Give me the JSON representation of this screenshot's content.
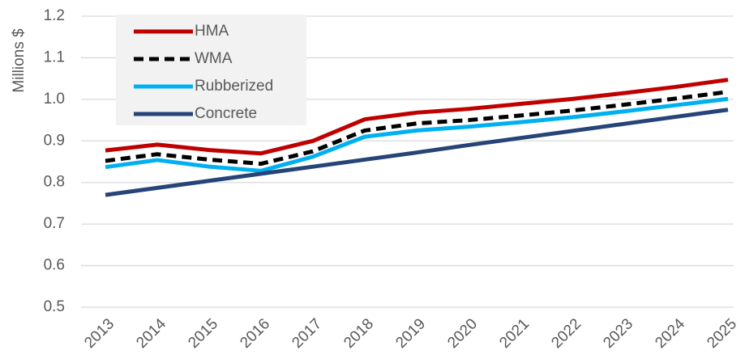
{
  "chart_data": {
    "type": "line",
    "y_label": "Millions $",
    "categories": [
      "2013",
      "2014",
      "2015",
      "2016",
      "2017",
      "2018",
      "2019",
      "2020",
      "2021",
      "2022",
      "2023",
      "2024",
      "2025"
    ],
    "series": [
      {
        "name": "HMA",
        "color": "#c00000",
        "dashed": false,
        "values": [
          0.877,
          0.891,
          0.878,
          0.87,
          0.9,
          0.952,
          0.968,
          0.977,
          0.989,
          1.001,
          1.015,
          1.03,
          1.047
        ]
      },
      {
        "name": "WMA",
        "color": "#000000",
        "dashed": true,
        "values": [
          0.852,
          0.868,
          0.855,
          0.845,
          0.875,
          0.925,
          0.942,
          0.95,
          0.961,
          0.973,
          0.987,
          1.002,
          1.018
        ]
      },
      {
        "name": "Rubberized",
        "color": "#00b0f0",
        "dashed": false,
        "values": [
          0.837,
          0.854,
          0.838,
          0.828,
          0.862,
          0.91,
          0.925,
          0.934,
          0.945,
          0.957,
          0.971,
          0.986,
          1.001
        ]
      },
      {
        "name": "Concrete",
        "color": "#264478",
        "dashed": false,
        "values": [
          0.77,
          0.787,
          0.804,
          0.821,
          0.838,
          0.855,
          0.872,
          0.89,
          0.907,
          0.924,
          0.941,
          0.958,
          0.975
        ]
      }
    ],
    "ylim": [
      0.5,
      1.2
    ],
    "yticks": [
      0.5,
      0.6,
      0.7,
      0.8,
      0.9,
      {
        "value": 1,
        "label": "1.0"
      },
      1.1,
      1.2
    ],
    "grid": true,
    "legend": "upper left"
  }
}
